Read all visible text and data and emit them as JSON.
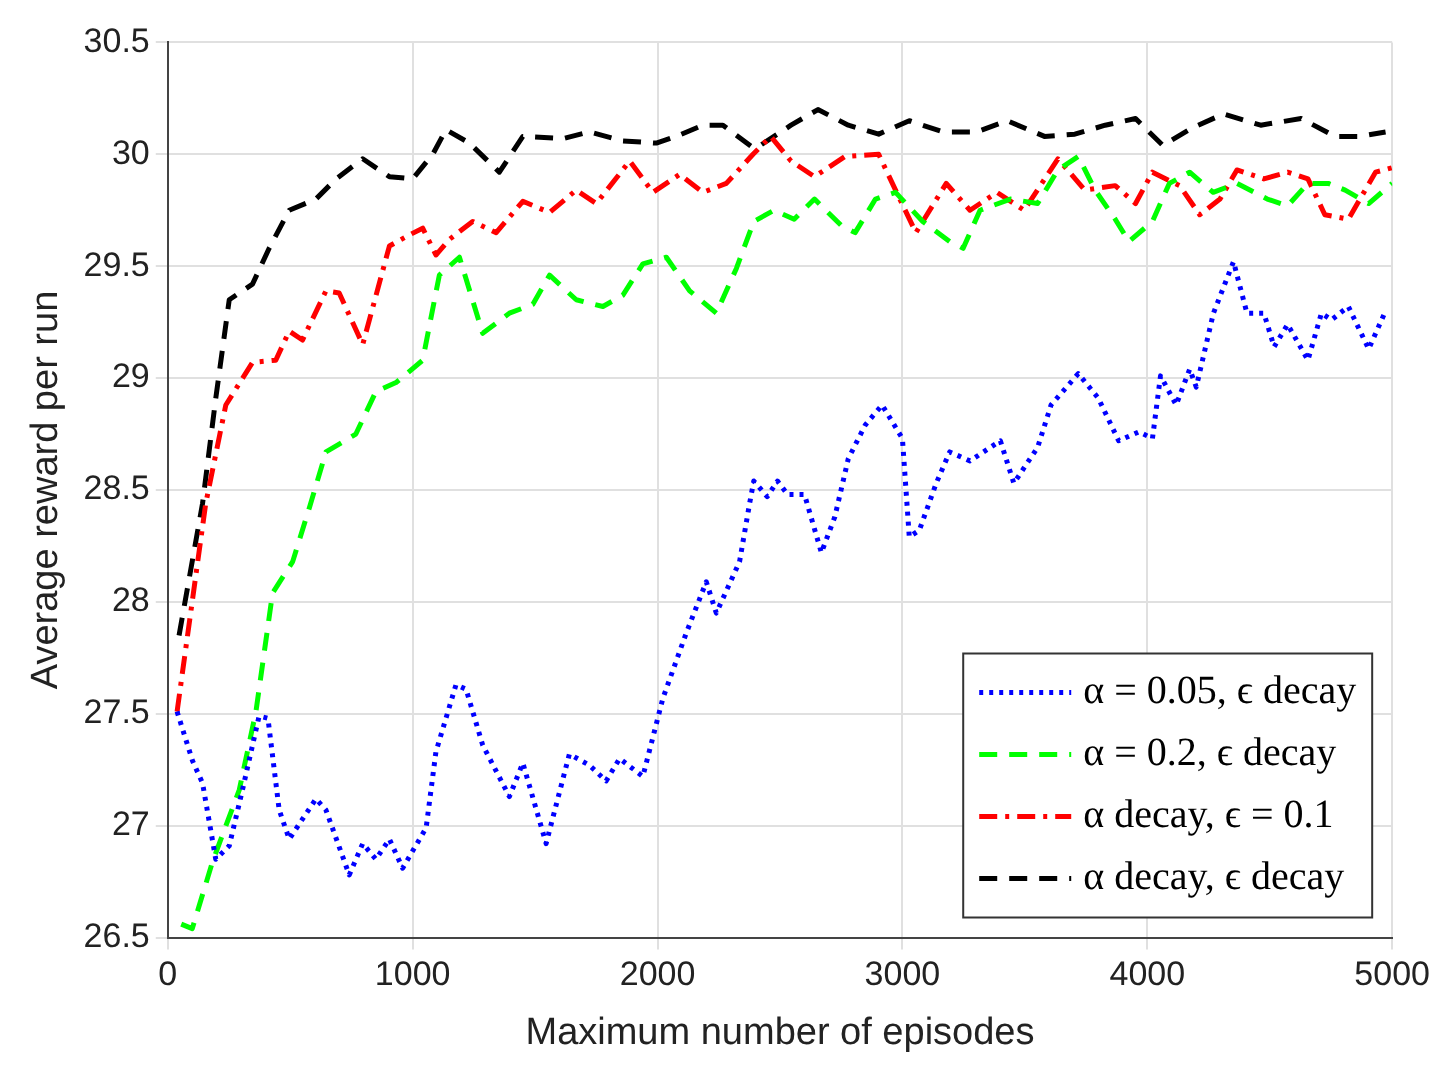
{
  "chart_data": {
    "type": "line",
    "xlabel": "Maximum number of episodes",
    "ylabel": "Average reward per run",
    "xlim": [
      0,
      5000
    ],
    "xticks": [
      0,
      1000,
      2000,
      3000,
      4000,
      5000
    ],
    "ylim": [
      26.5,
      30.5
    ],
    "yticks": [
      26.5,
      27,
      27.5,
      28,
      28.5,
      29,
      29.5,
      30,
      30.5
    ],
    "grid": true,
    "legend": "bottom right",
    "marker": "none",
    "series": [
      {
        "name": "α = 0.05, ϵ decay",
        "color": "#0000ff",
        "line_style": "dotted",
        "x": [
          38,
          101,
          142,
          196,
          251,
          305,
          373,
          409,
          455,
          496,
          605,
          646,
          741,
          796,
          850,
          905,
          959,
          1055,
          1095,
          1177,
          1218,
          1286,
          1395,
          1450,
          1545,
          1640,
          1722,
          1790,
          1845,
          1940,
          2022,
          2117,
          2199,
          2240,
          2335,
          2376,
          2393,
          2448,
          2490,
          2531,
          2600,
          2669,
          2724,
          2779,
          2848,
          2917,
          3000,
          3028,
          3069,
          3138,
          3193,
          3276,
          3400,
          3455,
          3552,
          3607,
          3718,
          3800,
          3883,
          3966,
          4021,
          4054,
          4118,
          4173,
          4200,
          4270,
          4352,
          4407,
          4476,
          4518,
          4573,
          4656,
          4711,
          4752,
          4821,
          4904,
          4973
        ],
        "values": [
          27.51,
          27.29,
          27.19,
          26.85,
          26.91,
          27.16,
          27.49,
          27.48,
          27.07,
          26.94,
          27.12,
          27.07,
          26.78,
          26.92,
          26.85,
          26.94,
          26.81,
          26.99,
          27.33,
          27.63,
          27.61,
          27.36,
          27.13,
          27.28,
          26.92,
          27.32,
          27.27,
          27.2,
          27.3,
          27.22,
          27.57,
          27.86,
          28.09,
          27.95,
          28.18,
          28.44,
          28.54,
          28.47,
          28.54,
          28.48,
          28.48,
          28.22,
          28.38,
          28.64,
          28.79,
          28.88,
          28.73,
          28.29,
          28.32,
          28.53,
          28.67,
          28.63,
          28.72,
          28.53,
          28.69,
          28.88,
          29.02,
          28.91,
          28.72,
          28.76,
          28.73,
          29.01,
          28.88,
          29.04,
          28.96,
          29.29,
          29.52,
          29.29,
          29.29,
          29.14,
          29.24,
          29.08,
          29.29,
          29.26,
          29.32,
          29.13,
          29.3
        ]
      },
      {
        "name": "α = 0.2, ϵ decay",
        "color": "#00ff00",
        "line_style": "dashed",
        "x": [
          55,
          100,
          183,
          292,
          360,
          428,
          510,
          578,
          646,
          768,
          850,
          932,
          1041,
          1109,
          1191,
          1286,
          1395,
          1491,
          1559,
          1668,
          1777,
          1858,
          1940,
          2036,
          2131,
          2240,
          2322,
          2393,
          2476,
          2558,
          2641,
          2752,
          2807,
          2890,
          2972,
          3083,
          3193,
          3248,
          3317,
          3441,
          3552,
          3635,
          3718,
          3787,
          3869,
          3925,
          4021,
          4090,
          4173,
          4269,
          4366,
          4490,
          4573,
          4656,
          4739,
          4808,
          4904,
          5000
        ],
        "values": [
          26.56,
          26.54,
          26.84,
          27.16,
          27.51,
          28.04,
          28.18,
          28.42,
          28.67,
          28.75,
          28.94,
          28.98,
          29.08,
          29.46,
          29.54,
          29.2,
          29.29,
          29.33,
          29.46,
          29.35,
          29.32,
          29.37,
          29.51,
          29.54,
          29.39,
          29.29,
          29.49,
          29.7,
          29.75,
          29.71,
          29.8,
          29.68,
          29.65,
          29.8,
          29.83,
          29.7,
          29.61,
          29.58,
          29.75,
          29.8,
          29.78,
          29.93,
          29.99,
          29.84,
          29.71,
          29.61,
          29.7,
          29.87,
          29.92,
          29.83,
          29.87,
          29.8,
          29.77,
          29.87,
          29.87,
          29.84,
          29.78,
          29.87
        ]
      },
      {
        "name": "α decay, ϵ = 0.1",
        "color": "#ff0000",
        "line_style": "dashdot",
        "x": [
          38,
          155,
          237,
          346,
          441,
          496,
          550,
          646,
          700,
          796,
          905,
          987,
          1041,
          1095,
          1150,
          1245,
          1341,
          1450,
          1559,
          1668,
          1750,
          1886,
          1981,
          2090,
          2185,
          2281,
          2390,
          2462,
          2545,
          2641,
          2765,
          2903,
          2972,
          3055,
          3179,
          3276,
          3386,
          3497,
          3635,
          3745,
          3869,
          3952,
          4021,
          4132,
          4214,
          4297,
          4366,
          4476,
          4573,
          4656,
          4725,
          4821,
          4932,
          5000
        ],
        "values": [
          27.51,
          28.44,
          28.88,
          29.07,
          29.08,
          29.21,
          29.17,
          29.39,
          29.38,
          29.15,
          29.59,
          29.64,
          29.67,
          29.55,
          29.62,
          29.7,
          29.65,
          29.79,
          29.74,
          29.84,
          29.78,
          29.97,
          29.83,
          29.91,
          29.83,
          29.87,
          30.0,
          30.08,
          29.97,
          29.9,
          29.99,
          30.0,
          29.84,
          29.65,
          29.87,
          29.75,
          29.83,
          29.75,
          29.98,
          29.84,
          29.86,
          29.78,
          29.92,
          29.86,
          29.73,
          29.8,
          29.93,
          29.89,
          29.92,
          29.89,
          29.73,
          29.71,
          29.92,
          29.94
        ]
      },
      {
        "name": "α decay, ϵ decay",
        "color": "#000000",
        "line_style": "dashed",
        "x": [
          46,
          142,
          196,
          251,
          346,
          414,
          496,
          605,
          687,
          796,
          905,
          1000,
          1082,
          1136,
          1232,
          1354,
          1450,
          1613,
          1722,
          1858,
          1995,
          2076,
          2185,
          2267,
          2390,
          2420,
          2545,
          2655,
          2779,
          2903,
          3028,
          3166,
          3304,
          3428,
          3580,
          3704,
          3828,
          3952,
          4063,
          4187,
          4311,
          4463,
          4628,
          4766,
          4863,
          4973
        ],
        "values": [
          27.85,
          28.44,
          28.91,
          29.35,
          29.42,
          29.58,
          29.75,
          29.8,
          29.89,
          29.98,
          29.9,
          29.89,
          30.0,
          30.11,
          30.05,
          29.92,
          30.08,
          30.07,
          30.1,
          30.06,
          30.05,
          30.08,
          30.13,
          30.13,
          30.03,
          30.04,
          30.13,
          30.2,
          30.13,
          30.09,
          30.15,
          30.1,
          30.1,
          30.15,
          30.08,
          30.09,
          30.13,
          30.16,
          30.04,
          30.12,
          30.18,
          30.13,
          30.16,
          30.08,
          30.08,
          30.1
        ]
      }
    ]
  }
}
